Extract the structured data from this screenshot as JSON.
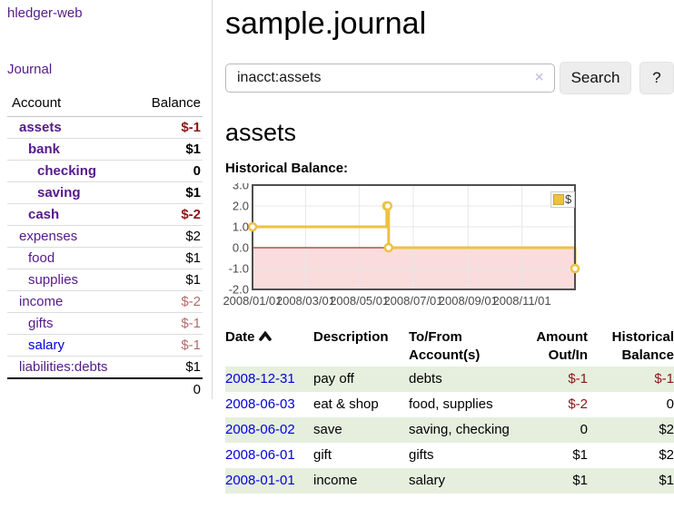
{
  "sidebar": {
    "brand": "hledger-web",
    "nav": [
      {
        "label": "Journal"
      }
    ],
    "accounts_table": {
      "headers": [
        "Account",
        "Balance"
      ],
      "rows": [
        {
          "account": "assets",
          "depth": 0,
          "bold": true,
          "balance": "$-1",
          "balance_style": "neg-strong",
          "link_color": "purple"
        },
        {
          "account": "bank",
          "depth": 1,
          "bold": true,
          "balance": "$1",
          "balance_style": "pos",
          "link_color": "purple"
        },
        {
          "account": "checking",
          "depth": 2,
          "bold": true,
          "balance": "0",
          "balance_style": "pos",
          "link_color": "purple"
        },
        {
          "account": "saving",
          "depth": 2,
          "bold": true,
          "balance": "$1",
          "balance_style": "pos",
          "link_color": "purple"
        },
        {
          "account": "cash",
          "depth": 1,
          "bold": true,
          "balance": "$-2",
          "balance_style": "neg-strong",
          "link_color": "purple"
        },
        {
          "account": "expenses",
          "depth": 0,
          "bold": false,
          "balance": "$2",
          "balance_style": "pos",
          "link_color": "purple"
        },
        {
          "account": "food",
          "depth": 1,
          "bold": false,
          "balance": "$1",
          "balance_style": "pos",
          "link_color": "purple"
        },
        {
          "account": "supplies",
          "depth": 1,
          "bold": false,
          "balance": "$1",
          "balance_style": "pos",
          "link_color": "purple"
        },
        {
          "account": "income",
          "depth": 0,
          "bold": false,
          "balance": "$-2",
          "balance_style": "neg-soft",
          "link_color": "purple"
        },
        {
          "account": "gifts",
          "depth": 1,
          "bold": false,
          "balance": "$-1",
          "balance_style": "neg-soft",
          "link_color": "purple"
        },
        {
          "account": "salary",
          "depth": 1,
          "bold": false,
          "balance": "$-1",
          "balance_style": "neg-soft",
          "link_color": "blue"
        },
        {
          "account": "liabilities:debts",
          "depth": 0,
          "bold": false,
          "balance": "$1",
          "balance_style": "pos",
          "link_color": "purple"
        }
      ],
      "total": "0"
    }
  },
  "header": {
    "title": "sample.journal"
  },
  "search": {
    "value": "inacct:assets",
    "clear_icon": "×",
    "button": "Search",
    "help_button": "?"
  },
  "account_page": {
    "title": "assets",
    "chart_label": "Historical Balance:"
  },
  "chart_data": {
    "type": "line",
    "step": true,
    "title": "Historical Balance",
    "series": [
      {
        "name": "$",
        "color": "#edc240",
        "points": [
          [
            "2008-01-01",
            1
          ],
          [
            "2008-06-01",
            2
          ],
          [
            "2008-06-02",
            2
          ],
          [
            "2008-06-03",
            0
          ],
          [
            "2008-12-31",
            -1
          ]
        ]
      }
    ],
    "xlim": [
      "2008-01-01",
      "2008-12-31"
    ],
    "ylim": [
      -2,
      3
    ],
    "yticks": [
      3,
      2,
      1,
      0,
      -1,
      -2
    ],
    "ytick_labels": [
      "3.0",
      "2.0",
      "1.0",
      "0.0",
      "-1.0",
      "-2.0"
    ],
    "xticks": [
      {
        "date": "2008-01-01",
        "label": "2008/01/01"
      },
      {
        "date": "2008-03-01",
        "label": "2008/03/01"
      },
      {
        "date": "2008-05-01",
        "label": "2008/05/01"
      },
      {
        "date": "2008-07-01",
        "label": "2008/07/01"
      },
      {
        "date": "2008-09-01",
        "label": "2008/09/01"
      },
      {
        "date": "2008-11-01",
        "label": "2008/11/01"
      }
    ],
    "grid": true,
    "legend_position": "top-right",
    "negative_fill": "#fadcdc",
    "zero_line_color": "#8b0000",
    "grid_color": "#e7e7e7",
    "frame_color": "#4f4f4f",
    "tick_color": "#4a4a4a"
  },
  "register": {
    "columns": [
      "Date",
      "Description",
      "To/From Account(s)",
      "Amount Out/In",
      "Historical Balance"
    ],
    "sort_column": "Date",
    "sort_direction": "ascending",
    "rows": [
      {
        "date": "2008-12-31",
        "description": "pay off",
        "accounts": "debts",
        "amount": "$-1",
        "amount_neg": true,
        "balance": "$-1",
        "balance_neg": true
      },
      {
        "date": "2008-06-03",
        "description": "eat & shop",
        "accounts": "food, supplies",
        "amount": "$-2",
        "amount_neg": true,
        "balance": "0",
        "balance_neg": false
      },
      {
        "date": "2008-06-02",
        "description": "save",
        "accounts": "saving, checking",
        "amount": "0",
        "amount_neg": false,
        "balance": "$2",
        "balance_neg": false
      },
      {
        "date": "2008-06-01",
        "description": "gift",
        "accounts": "gifts",
        "amount": "$1",
        "amount_neg": false,
        "balance": "$2",
        "balance_neg": false
      },
      {
        "date": "2008-01-01",
        "description": "income",
        "accounts": "salary",
        "amount": "$1",
        "amount_neg": false,
        "balance": "$1",
        "balance_neg": false
      }
    ]
  },
  "colors": {
    "link_purple": "#551A8B",
    "link_blue": "#0000e0",
    "negative_strong": "#8b1515",
    "negative_soft": "#b36b6b",
    "row_stripe_green": "#e6efde",
    "series_yellow": "#edc240",
    "negative_region_pink": "#fadcdc"
  }
}
